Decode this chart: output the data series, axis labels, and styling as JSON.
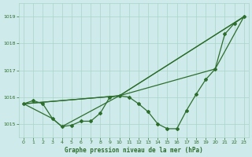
{
  "title": "Graphe pression niveau de la mer (hPa)",
  "background_color": "#ceeaea",
  "grid_color": "#a8d5c8",
  "line_color": "#2d6e2d",
  "ylim": [
    1014.5,
    1019.5
  ],
  "xlim": [
    -0.5,
    23.5
  ],
  "yticks": [
    1015,
    1016,
    1017,
    1018,
    1019
  ],
  "xticks": [
    0,
    1,
    2,
    3,
    4,
    5,
    6,
    7,
    8,
    9,
    10,
    11,
    12,
    13,
    14,
    15,
    16,
    17,
    18,
    19,
    20,
    21,
    22,
    23
  ],
  "line1_x": [
    0,
    1,
    2,
    3,
    4,
    5,
    6,
    7,
    8,
    9,
    10,
    11,
    12,
    13,
    14,
    15,
    16,
    17,
    18,
    19,
    20,
    21,
    22,
    23
  ],
  "line1_y": [
    1015.75,
    1015.87,
    1015.75,
    1015.2,
    1014.9,
    1014.95,
    1015.1,
    1015.1,
    1015.4,
    1016.0,
    1016.05,
    1016.0,
    1015.75,
    1015.45,
    1015.0,
    1014.82,
    1014.82,
    1015.5,
    1016.1,
    1016.65,
    1017.05,
    1018.35,
    1018.75,
    1019.0
  ],
  "line2_x": [
    0,
    10,
    23
  ],
  "line2_y": [
    1015.75,
    1016.05,
    1019.0
  ],
  "line3_x": [
    0,
    3,
    4,
    10,
    23
  ],
  "line3_y": [
    1015.75,
    1015.2,
    1014.9,
    1016.05,
    1019.0
  ],
  "line4_x": [
    0,
    10,
    20,
    23
  ],
  "line4_y": [
    1015.75,
    1016.05,
    1017.05,
    1019.0
  ]
}
